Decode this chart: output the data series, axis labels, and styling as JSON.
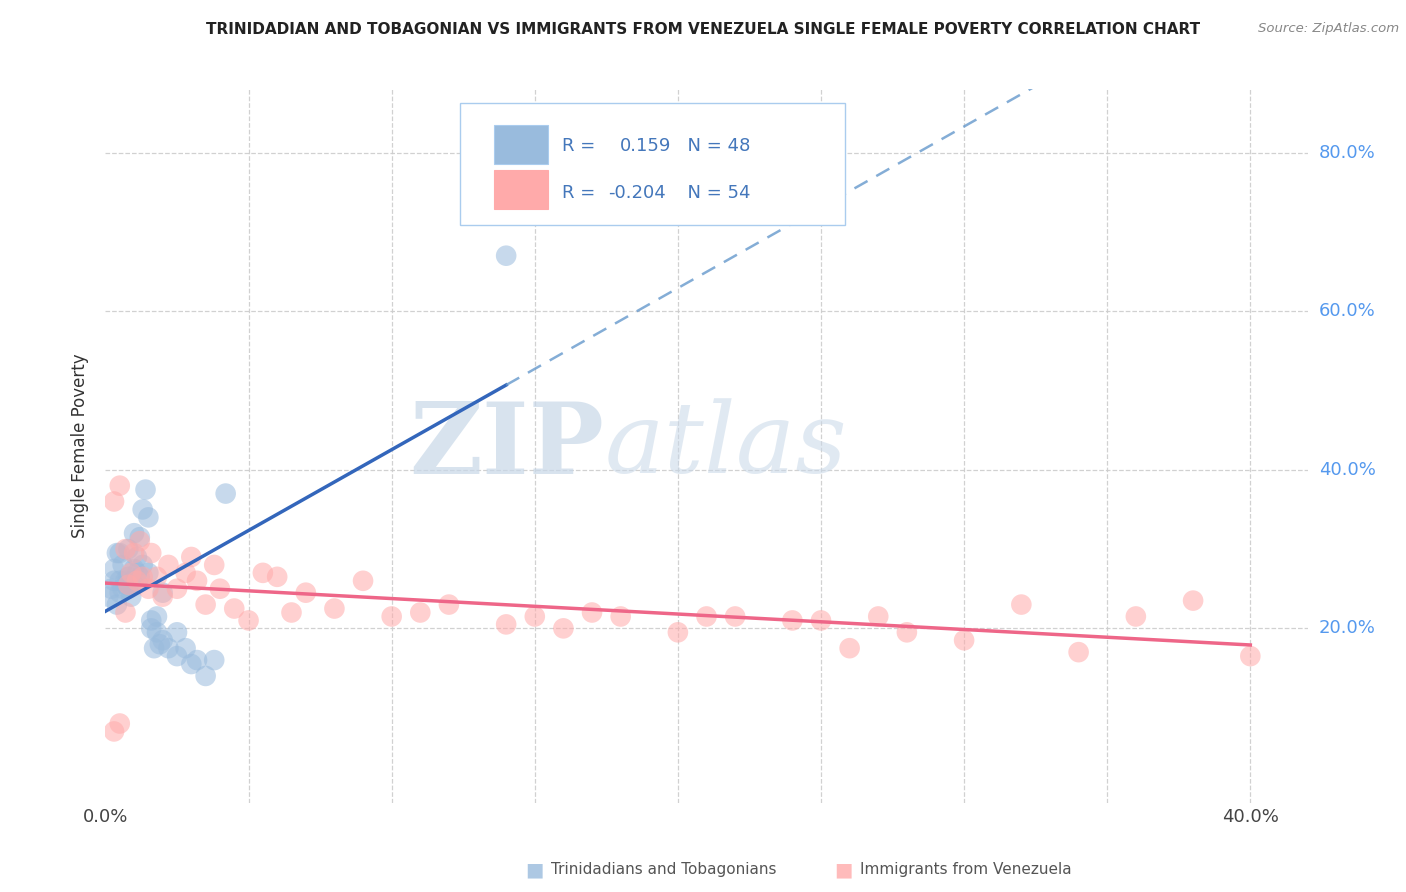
{
  "title": "TRINIDADIAN AND TOBAGONIAN VS IMMIGRANTS FROM VENEZUELA SINGLE FEMALE POVERTY CORRELATION CHART",
  "source": "Source: ZipAtlas.com",
  "ylabel": "Single Female Poverty",
  "xlim": [
    0.0,
    0.42
  ],
  "ylim": [
    -0.02,
    0.88
  ],
  "blue_R": "0.159",
  "blue_N": "48",
  "pink_R": "-0.204",
  "pink_N": "54",
  "blue_color": "#99BBDD",
  "pink_color": "#FFAAAA",
  "blue_line_solid_color": "#3366BB",
  "blue_line_dash_color": "#6699CC",
  "pink_line_color": "#EE6688",
  "background_color": "#FFFFFF",
  "grid_color": "#CCCCCC",
  "watermark_zip_color": "#C8D8E8",
  "watermark_atlas_color": "#C8D8E8",
  "legend_label_blue": "Trinidadians and Tobagonians",
  "legend_label_pink": "Immigrants from Venezuela",
  "legend_text_color": "#4477BB",
  "blue_scatter_x": [
    0.001,
    0.002,
    0.003,
    0.003,
    0.004,
    0.004,
    0.005,
    0.005,
    0.005,
    0.006,
    0.006,
    0.007,
    0.007,
    0.008,
    0.008,
    0.008,
    0.009,
    0.009,
    0.01,
    0.01,
    0.01,
    0.011,
    0.011,
    0.012,
    0.012,
    0.013,
    0.013,
    0.014,
    0.015,
    0.015,
    0.016,
    0.016,
    0.017,
    0.018,
    0.018,
    0.019,
    0.02,
    0.02,
    0.022,
    0.025,
    0.025,
    0.028,
    0.03,
    0.032,
    0.035,
    0.038,
    0.042,
    0.14
  ],
  "blue_scatter_y": [
    0.24,
    0.25,
    0.26,
    0.275,
    0.23,
    0.295,
    0.245,
    0.26,
    0.295,
    0.25,
    0.28,
    0.26,
    0.255,
    0.265,
    0.25,
    0.3,
    0.255,
    0.24,
    0.275,
    0.255,
    0.32,
    0.27,
    0.29,
    0.265,
    0.315,
    0.28,
    0.35,
    0.375,
    0.34,
    0.27,
    0.21,
    0.2,
    0.175,
    0.195,
    0.215,
    0.18,
    0.185,
    0.245,
    0.175,
    0.165,
    0.195,
    0.175,
    0.155,
    0.16,
    0.14,
    0.16,
    0.37,
    0.67
  ],
  "pink_scatter_x": [
    0.003,
    0.005,
    0.007,
    0.008,
    0.009,
    0.01,
    0.011,
    0.012,
    0.013,
    0.015,
    0.016,
    0.018,
    0.02,
    0.022,
    0.025,
    0.028,
    0.03,
    0.032,
    0.035,
    0.038,
    0.04,
    0.045,
    0.05,
    0.055,
    0.06,
    0.065,
    0.07,
    0.08,
    0.09,
    0.1,
    0.11,
    0.12,
    0.14,
    0.15,
    0.16,
    0.17,
    0.18,
    0.2,
    0.21,
    0.22,
    0.24,
    0.25,
    0.26,
    0.27,
    0.28,
    0.3,
    0.32,
    0.34,
    0.36,
    0.38,
    0.003,
    0.005,
    0.007,
    0.4
  ],
  "pink_scatter_y": [
    0.36,
    0.38,
    0.3,
    0.255,
    0.27,
    0.295,
    0.26,
    0.31,
    0.265,
    0.25,
    0.295,
    0.265,
    0.24,
    0.28,
    0.25,
    0.27,
    0.29,
    0.26,
    0.23,
    0.28,
    0.25,
    0.225,
    0.21,
    0.27,
    0.265,
    0.22,
    0.245,
    0.225,
    0.26,
    0.215,
    0.22,
    0.23,
    0.205,
    0.215,
    0.2,
    0.22,
    0.215,
    0.195,
    0.215,
    0.215,
    0.21,
    0.21,
    0.175,
    0.215,
    0.195,
    0.185,
    0.23,
    0.17,
    0.215,
    0.235,
    0.07,
    0.08,
    0.22,
    0.165
  ]
}
